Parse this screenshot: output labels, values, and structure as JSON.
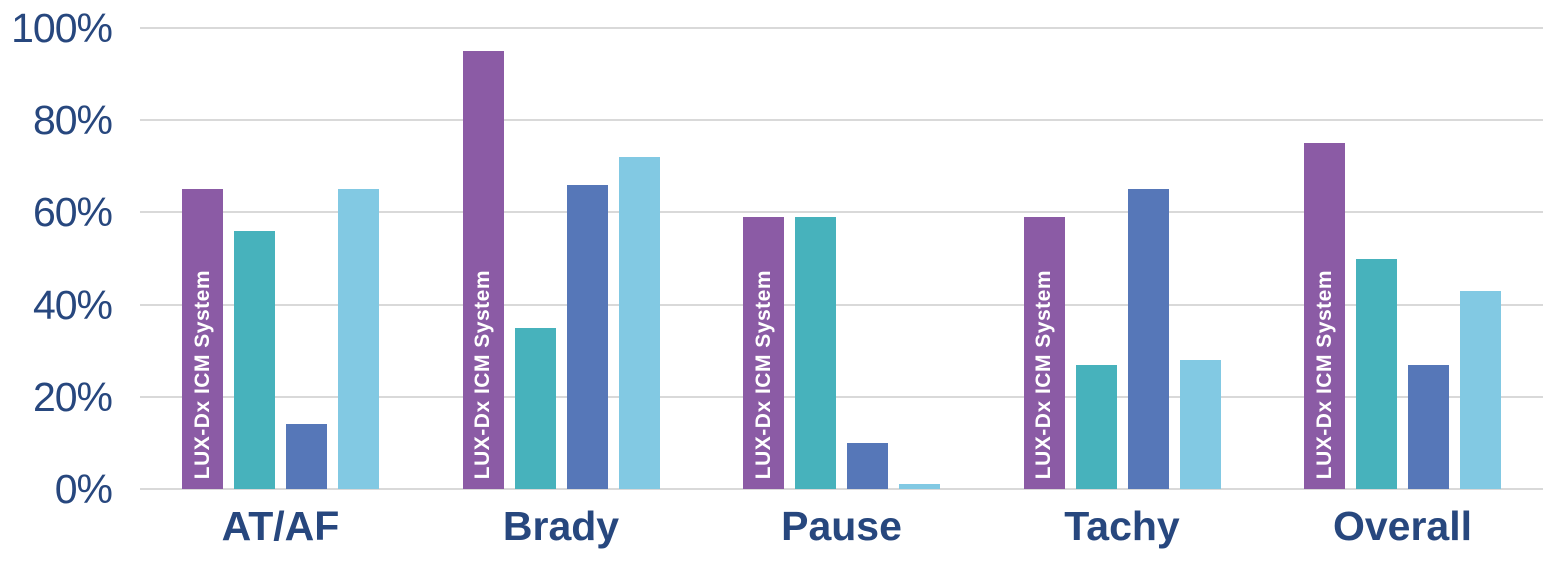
{
  "chart_data": {
    "type": "bar",
    "title": "",
    "xlabel": "",
    "ylabel": "",
    "categories": [
      "AT/AF",
      "Brady",
      "Pause",
      "Tachy",
      "Overall"
    ],
    "series": [
      {
        "key": "purple",
        "name": "LUX-Dx ICM System",
        "in_bar_label": "LUX-Dx ICM System",
        "color": "#8B5BA5",
        "values": [
          65,
          95,
          59,
          59,
          75
        ]
      },
      {
        "key": "teal",
        "name": "",
        "in_bar_label": "",
        "color": "#47B2BC",
        "values": [
          56,
          35,
          59,
          27,
          50
        ]
      },
      {
        "key": "dark-blue",
        "name": "",
        "in_bar_label": "",
        "color": "#5677B8",
        "values": [
          14,
          66,
          10,
          65,
          27
        ]
      },
      {
        "key": "light-blue",
        "name": "",
        "in_bar_label": "",
        "color": "#82C9E3",
        "values": [
          65,
          72,
          1,
          28,
          43
        ]
      }
    ],
    "y_ticks": [
      {
        "value": 100,
        "label": "100%"
      },
      {
        "value": 80,
        "label": "80%"
      },
      {
        "value": 60,
        "label": "60%"
      },
      {
        "value": 40,
        "label": "40%"
      },
      {
        "value": 20,
        "label": "20%"
      },
      {
        "value": 0,
        "label": "0%"
      }
    ],
    "ylim": [
      0,
      100
    ],
    "grid": true,
    "legend": false,
    "colors": {
      "axis_text": "#27477E",
      "gridline": "#D9D9D9",
      "in_bar_label_text": "#FFFFFF",
      "background": "#FFFFFF"
    }
  }
}
